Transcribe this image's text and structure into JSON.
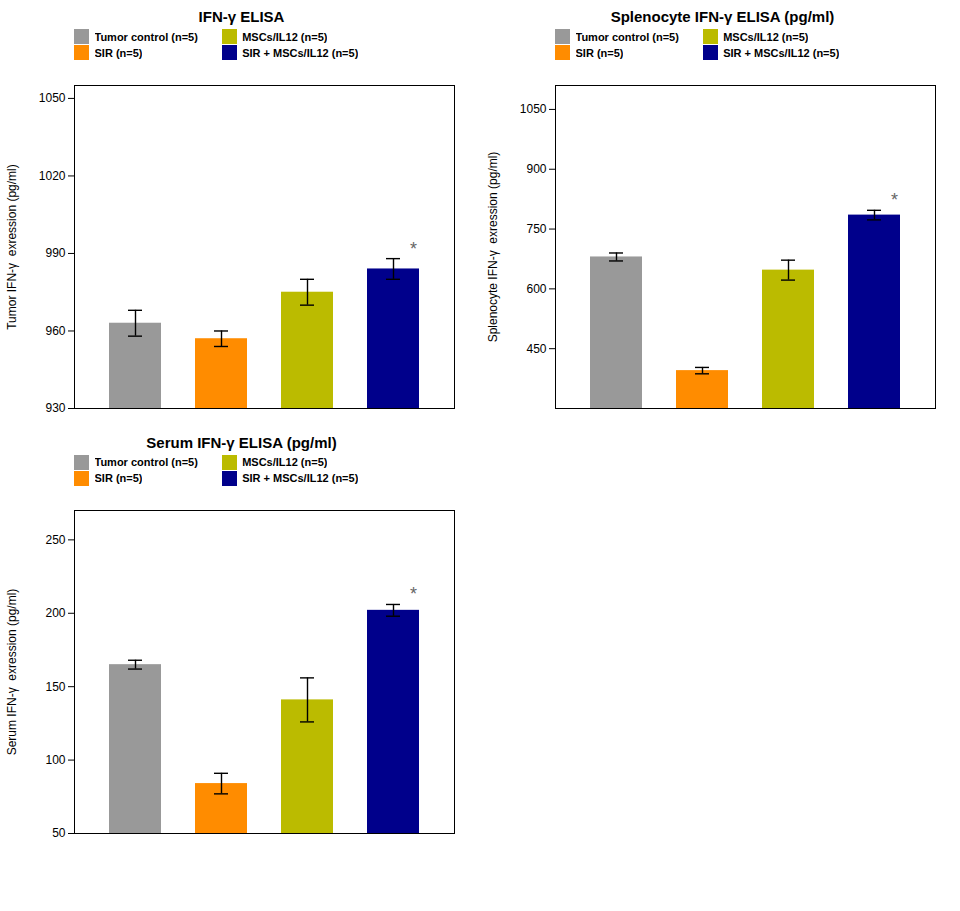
{
  "chart_data": [
    {
      "type": "bar",
      "title": "IFN-γ ELISA",
      "ylabel": "Tumor IFN-γ  exression (pg/ml)",
      "categories": [
        "Tumor control (n=5)",
        "SIR (n=5)",
        "MSCs/IL12 (n=5)",
        "SIR + MSCs/IL12 (n=5)"
      ],
      "values": [
        963,
        957,
        975,
        984
      ],
      "errors": [
        5,
        3,
        5,
        4
      ],
      "colors": [
        "#999999",
        "#FF8C00",
        "#BBBB00",
        "#00008B"
      ],
      "ylim": [
        930,
        1055
      ],
      "yticks": [
        930,
        960,
        990,
        1020,
        1050
      ],
      "legend": "upper left",
      "tick_labels": "y",
      "annotations": [
        {
          "text": "*",
          "category": "SIR + MSCs/IL12 (n=5)"
        }
      ]
    },
    {
      "type": "bar",
      "title": "Splenocyte IFN-γ ELISA (pg/ml)",
      "ylabel": "Splenocyte IFN-γ  exression (pg/ml)",
      "categories": [
        "Tumor control (n=5)",
        "SIR (n=5)",
        "MSCs/IL12 (n=5)",
        "SIR + MSCs/IL12 (n=5)"
      ],
      "values": [
        680,
        395,
        647,
        785
      ],
      "errors": [
        10,
        8,
        25,
        12
      ],
      "colors": [
        "#999999",
        "#FF8C00",
        "#BBBB00",
        "#00008B"
      ],
      "ylim": [
        300,
        1110
      ],
      "yticks": [
        450,
        600,
        750,
        900,
        1050
      ],
      "legend": "upper left",
      "tick_labels": "y",
      "annotations": [
        {
          "text": "*",
          "category": "SIR + MSCs/IL12 (n=5)"
        }
      ]
    },
    {
      "type": "bar",
      "title": "Serum IFN-γ ELISA (pg/ml)",
      "ylabel": "Serum IFN-γ  exression (pg/ml)",
      "categories": [
        "Tumor control (n=5)",
        "SIR (n=5)",
        "MSCs/IL12 (n=5)",
        "SIR + MSCs/IL12 (n=5)"
      ],
      "values": [
        165,
        84,
        141,
        202
      ],
      "errors": [
        3,
        7,
        15,
        4
      ],
      "colors": [
        "#999999",
        "#FF8C00",
        "#BBBB00",
        "#00008B"
      ],
      "ylim": [
        50,
        270
      ],
      "yticks": [
        50,
        100,
        150,
        200,
        250
      ],
      "legend": "upper left",
      "tick_labels": "y",
      "annotations": [
        {
          "text": "*",
          "category": "SIR + MSCs/IL12 (n=5)"
        }
      ]
    }
  ]
}
